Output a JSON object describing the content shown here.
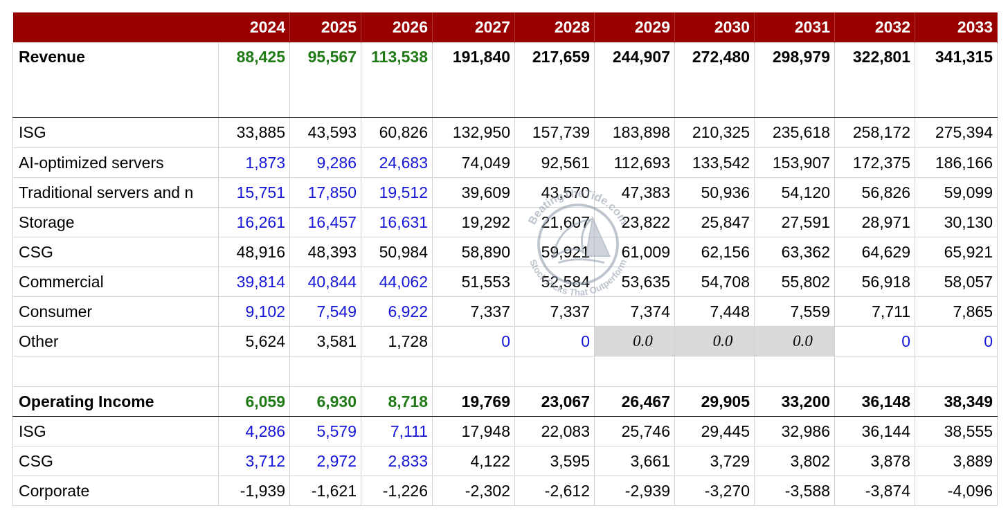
{
  "header": {
    "years": [
      "2024",
      "2025",
      "2026",
      "2027",
      "2028",
      "2029",
      "2030",
      "2031",
      "2032",
      "2033"
    ]
  },
  "colors": {
    "header_bg": "#990000",
    "green": "#1f7a16",
    "blue": "#1515d6",
    "grey_cell": "#d9d9d9"
  },
  "rows": [
    {
      "label": "Revenue",
      "type": "revenue",
      "cells": [
        {
          "v": "88,425",
          "c": "green"
        },
        {
          "v": "95,567",
          "c": "green"
        },
        {
          "v": "113,538",
          "c": "green"
        },
        {
          "v": "191,840",
          "c": "black"
        },
        {
          "v": "217,659",
          "c": "black"
        },
        {
          "v": "244,907",
          "c": "black"
        },
        {
          "v": "272,480",
          "c": "black"
        },
        {
          "v": "298,979",
          "c": "black"
        },
        {
          "v": "322,801",
          "c": "black"
        },
        {
          "v": "341,315",
          "c": "black"
        }
      ]
    },
    {
      "label": "ISG",
      "type": "normal",
      "cells": [
        {
          "v": "33,885",
          "c": "black"
        },
        {
          "v": "43,593",
          "c": "black"
        },
        {
          "v": "60,826",
          "c": "black"
        },
        {
          "v": "132,950",
          "c": "black"
        },
        {
          "v": "157,739",
          "c": "black"
        },
        {
          "v": "183,898",
          "c": "black"
        },
        {
          "v": "210,325",
          "c": "black"
        },
        {
          "v": "235,618",
          "c": "black"
        },
        {
          "v": "258,172",
          "c": "black"
        },
        {
          "v": "275,394",
          "c": "black"
        }
      ]
    },
    {
      "label": "AI-optimized servers",
      "type": "normal",
      "cells": [
        {
          "v": "1,873",
          "c": "blue"
        },
        {
          "v": "9,286",
          "c": "blue"
        },
        {
          "v": "24,683",
          "c": "blue"
        },
        {
          "v": "74,049",
          "c": "black"
        },
        {
          "v": "92,561",
          "c": "black"
        },
        {
          "v": "112,693",
          "c": "black"
        },
        {
          "v": "133,542",
          "c": "black"
        },
        {
          "v": "153,907",
          "c": "black"
        },
        {
          "v": "172,375",
          "c": "black"
        },
        {
          "v": "186,166",
          "c": "black"
        }
      ]
    },
    {
      "label": "Traditional servers and n",
      "type": "normal",
      "cells": [
        {
          "v": "15,751",
          "c": "blue"
        },
        {
          "v": "17,850",
          "c": "blue"
        },
        {
          "v": "19,512",
          "c": "blue"
        },
        {
          "v": "39,609",
          "c": "black"
        },
        {
          "v": "43,570",
          "c": "black"
        },
        {
          "v": "47,383",
          "c": "black"
        },
        {
          "v": "50,936",
          "c": "black"
        },
        {
          "v": "54,120",
          "c": "black"
        },
        {
          "v": "56,826",
          "c": "black"
        },
        {
          "v": "59,099",
          "c": "black"
        }
      ]
    },
    {
      "label": "Storage",
      "type": "normal",
      "cells": [
        {
          "v": "16,261",
          "c": "blue"
        },
        {
          "v": "16,457",
          "c": "blue"
        },
        {
          "v": "16,631",
          "c": "blue"
        },
        {
          "v": "19,292",
          "c": "black"
        },
        {
          "v": "21,607",
          "c": "black"
        },
        {
          "v": "23,822",
          "c": "black"
        },
        {
          "v": "25,847",
          "c": "black"
        },
        {
          "v": "27,591",
          "c": "black"
        },
        {
          "v": "28,971",
          "c": "black"
        },
        {
          "v": "30,130",
          "c": "black"
        }
      ]
    },
    {
      "label": "CSG",
      "type": "normal",
      "cells": [
        {
          "v": "48,916",
          "c": "black"
        },
        {
          "v": "48,393",
          "c": "black"
        },
        {
          "v": "50,984",
          "c": "black"
        },
        {
          "v": "58,890",
          "c": "black"
        },
        {
          "v": "59,921",
          "c": "black"
        },
        {
          "v": "61,009",
          "c": "black"
        },
        {
          "v": "62,156",
          "c": "black"
        },
        {
          "v": "63,362",
          "c": "black"
        },
        {
          "v": "64,629",
          "c": "black"
        },
        {
          "v": "65,921",
          "c": "black"
        }
      ]
    },
    {
      "label": "Commercial",
      "type": "normal",
      "cells": [
        {
          "v": "39,814",
          "c": "blue"
        },
        {
          "v": "40,844",
          "c": "blue"
        },
        {
          "v": "44,062",
          "c": "blue"
        },
        {
          "v": "51,553",
          "c": "black"
        },
        {
          "v": "52,584",
          "c": "black"
        },
        {
          "v": "53,635",
          "c": "black"
        },
        {
          "v": "54,708",
          "c": "black"
        },
        {
          "v": "55,802",
          "c": "black"
        },
        {
          "v": "56,918",
          "c": "black"
        },
        {
          "v": "58,057",
          "c": "black"
        }
      ]
    },
    {
      "label": "Consumer",
      "type": "normal",
      "cells": [
        {
          "v": "9,102",
          "c": "blue"
        },
        {
          "v": "7,549",
          "c": "blue"
        },
        {
          "v": "6,922",
          "c": "blue"
        },
        {
          "v": "7,337",
          "c": "black"
        },
        {
          "v": "7,337",
          "c": "black"
        },
        {
          "v": "7,374",
          "c": "black"
        },
        {
          "v": "7,448",
          "c": "black"
        },
        {
          "v": "7,559",
          "c": "black"
        },
        {
          "v": "7,711",
          "c": "black"
        },
        {
          "v": "7,865",
          "c": "black"
        }
      ]
    },
    {
      "label": "Other",
      "type": "normal",
      "cells": [
        {
          "v": "5,624",
          "c": "black"
        },
        {
          "v": "3,581",
          "c": "black"
        },
        {
          "v": "1,728",
          "c": "black"
        },
        {
          "v": "0",
          "c": "blue"
        },
        {
          "v": "0",
          "c": "blue"
        },
        {
          "v": "0.0",
          "c": "grey"
        },
        {
          "v": "0.0",
          "c": "grey"
        },
        {
          "v": "0.0",
          "c": "grey"
        },
        {
          "v": "0",
          "c": "blue"
        },
        {
          "v": "0",
          "c": "blue"
        }
      ]
    },
    {
      "label": "",
      "type": "spacer",
      "cells": [
        {
          "v": "",
          "c": "black"
        },
        {
          "v": "",
          "c": "black"
        },
        {
          "v": "",
          "c": "black"
        },
        {
          "v": "",
          "c": "black"
        },
        {
          "v": "",
          "c": "black"
        },
        {
          "v": "",
          "c": "black"
        },
        {
          "v": "",
          "c": "black"
        },
        {
          "v": "",
          "c": "black"
        },
        {
          "v": "",
          "c": "black"
        },
        {
          "v": "",
          "c": "black"
        }
      ]
    },
    {
      "label": "Operating Income",
      "type": "opinc",
      "cells": [
        {
          "v": "6,059",
          "c": "green"
        },
        {
          "v": "6,930",
          "c": "green"
        },
        {
          "v": "8,718",
          "c": "green"
        },
        {
          "v": "19,769",
          "c": "black"
        },
        {
          "v": "23,067",
          "c": "black"
        },
        {
          "v": "26,467",
          "c": "black"
        },
        {
          "v": "29,905",
          "c": "black"
        },
        {
          "v": "33,200",
          "c": "black"
        },
        {
          "v": "36,148",
          "c": "black"
        },
        {
          "v": "38,349",
          "c": "black"
        }
      ]
    },
    {
      "label": "ISG",
      "type": "normal",
      "cells": [
        {
          "v": "4,286",
          "c": "blue"
        },
        {
          "v": "5,579",
          "c": "blue"
        },
        {
          "v": "7,111",
          "c": "blue"
        },
        {
          "v": "17,948",
          "c": "black"
        },
        {
          "v": "22,083",
          "c": "black"
        },
        {
          "v": "25,746",
          "c": "black"
        },
        {
          "v": "29,445",
          "c": "black"
        },
        {
          "v": "32,986",
          "c": "black"
        },
        {
          "v": "36,144",
          "c": "black"
        },
        {
          "v": "38,555",
          "c": "black"
        }
      ]
    },
    {
      "label": "CSG",
      "type": "normal",
      "cells": [
        {
          "v": "3,712",
          "c": "blue"
        },
        {
          "v": "2,972",
          "c": "blue"
        },
        {
          "v": "2,833",
          "c": "blue"
        },
        {
          "v": "4,122",
          "c": "black"
        },
        {
          "v": "3,595",
          "c": "black"
        },
        {
          "v": "3,661",
          "c": "black"
        },
        {
          "v": "3,729",
          "c": "black"
        },
        {
          "v": "3,802",
          "c": "black"
        },
        {
          "v": "3,878",
          "c": "black"
        },
        {
          "v": "3,889",
          "c": "black"
        }
      ]
    },
    {
      "label": "Corporate",
      "type": "normal",
      "cells": [
        {
          "v": "-1,939",
          "c": "black"
        },
        {
          "v": "-1,621",
          "c": "black"
        },
        {
          "v": "-1,226",
          "c": "black"
        },
        {
          "v": "-2,302",
          "c": "black"
        },
        {
          "v": "-2,612",
          "c": "black"
        },
        {
          "v": "-2,939",
          "c": "black"
        },
        {
          "v": "-3,270",
          "c": "black"
        },
        {
          "v": "-3,588",
          "c": "black"
        },
        {
          "v": "-3,874",
          "c": "black"
        },
        {
          "v": "-4,096",
          "c": "black"
        }
      ]
    }
  ],
  "watermark": {
    "top_text": "BeatingTheTide.com",
    "bottom_text": "Stock Picks That Outperform",
    "icon": "shark-fin-wave-icon"
  }
}
